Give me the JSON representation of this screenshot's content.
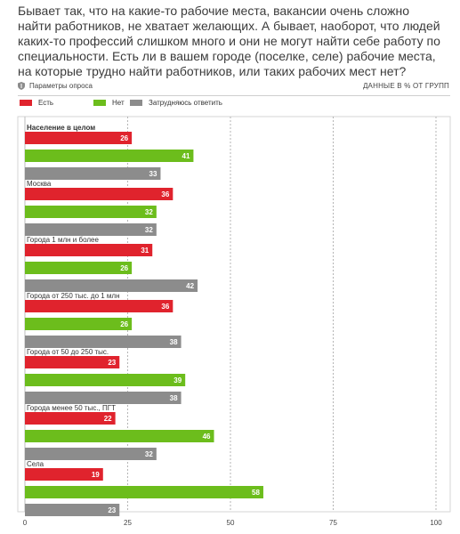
{
  "question": "Бывает так, что на какие-то рабочие места, вакансии очень сложно найти работников, не хватает желающих. А бывает, наоборот, что людей каких-то профессий слишком много и они не могут найти себе работу по специальности. Есть ли в вашем городе (поселке, селе) рабочие места, на которые трудно найти работников, или таких рабочих мест нет?",
  "survey_params_label": "Параметры опроса",
  "data_note": "ДАННЫЕ В % ОТ ГРУПП",
  "colors": {
    "yes": "#e0232d",
    "no": "#6cbd1c",
    "unsure": "#8c8c8c"
  },
  "chart_data": {
    "type": "bar",
    "orientation": "horizontal",
    "categories": [
      "Население в целом",
      "Москва",
      "Города 1 млн и более",
      "Города от 250 тыс. до 1 млн",
      "Города от 50 до 250 тыс.",
      "Города менее 50 тыс., ПГТ",
      "Села"
    ],
    "series": [
      {
        "name": "Есть",
        "values": [
          26,
          36,
          31,
          36,
          23,
          22,
          19
        ]
      },
      {
        "name": "Нет",
        "values": [
          41,
          32,
          26,
          26,
          39,
          46,
          58
        ]
      },
      {
        "name": "Затрудняюсь ответить",
        "values": [
          33,
          32,
          42,
          38,
          38,
          32,
          23
        ]
      }
    ],
    "xlim": [
      0,
      100
    ],
    "xticks": [
      0,
      25,
      50,
      75,
      100
    ],
    "grid": true,
    "legend": "top-left"
  }
}
